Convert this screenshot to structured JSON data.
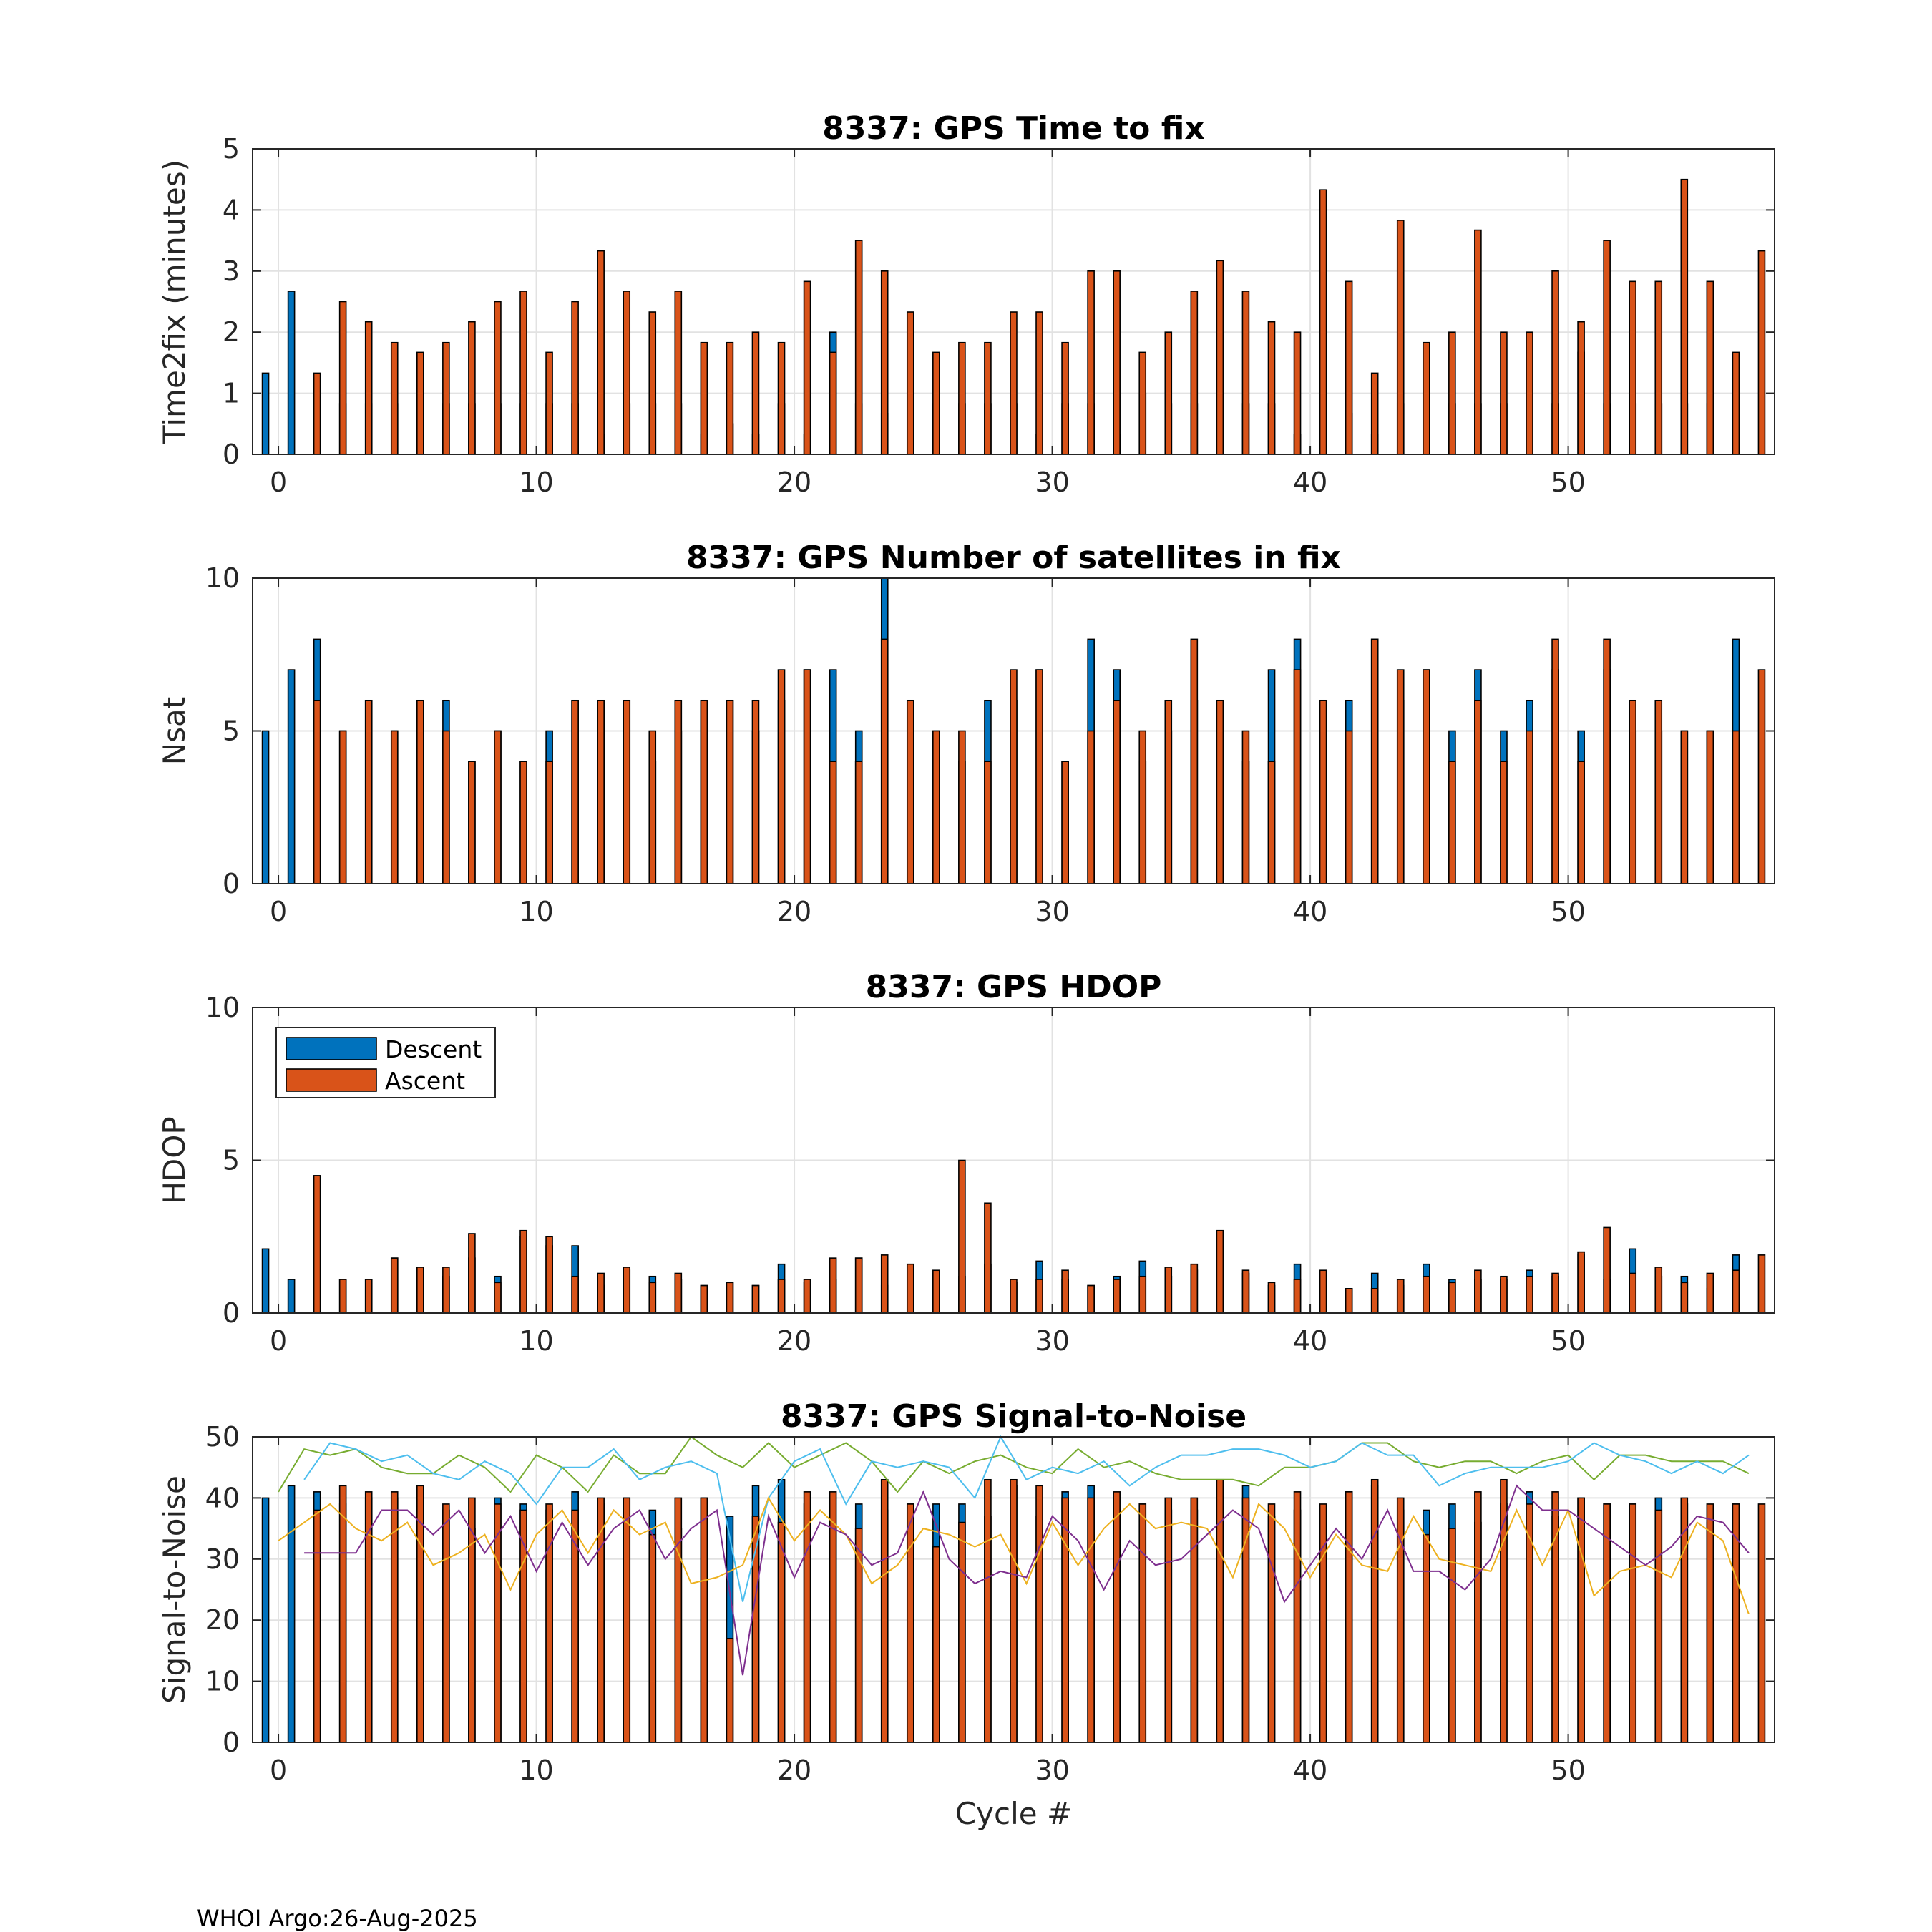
{
  "footer": "WHOI Argo:26-Aug-2025",
  "colors": {
    "descent": "#0072BD",
    "ascent": "#D95319",
    "snr_lines": [
      "#77AC30",
      "#4DBEEE",
      "#EDB120",
      "#7E2F8E"
    ]
  },
  "legend": {
    "descent": "Descent",
    "ascent": "Ascent"
  },
  "chart_data": [
    {
      "type": "bar",
      "title": "8337: GPS Time to fix",
      "ylabel": "Time2fix (minutes)",
      "xlabel": "",
      "xlim": [
        -1,
        58
      ],
      "ylim": [
        0,
        5
      ],
      "xticks": [
        0,
        10,
        20,
        30,
        40,
        50
      ],
      "yticks": [
        0,
        1,
        2,
        3,
        4,
        5
      ],
      "grid": true,
      "cycles": [
        0,
        1,
        2,
        3,
        4,
        5,
        6,
        7,
        8,
        9,
        10,
        11,
        12,
        13,
        14,
        15,
        16,
        17,
        18,
        19,
        20,
        21,
        22,
        23,
        24,
        25,
        26,
        27,
        28,
        29,
        30,
        31,
        32,
        33,
        34,
        35,
        36,
        37,
        38,
        39,
        40,
        41,
        42,
        43,
        44,
        45,
        46,
        47,
        48,
        49,
        50,
        51,
        52,
        53,
        54,
        55,
        56,
        57
      ],
      "series": [
        {
          "name": "Descent",
          "values": [
            1.33,
            2.67,
            0.83,
            0.83,
            0.83,
            0.83,
            0.83,
            0.83,
            0.83,
            0.83,
            0.83,
            0.83,
            0.83,
            0.33,
            0.83,
            0.83,
            0.83,
            0.33,
            0.5,
            0.33,
            0.83,
            0.33,
            2.0,
            0.83,
            0.67,
            0.83,
            0.83,
            0.83,
            0.83,
            0.83,
            0.33,
            0.83,
            0.83,
            0.33,
            1.0,
            0.83,
            0.83,
            0.83,
            0.83,
            0.83,
            0.33,
            0.83,
            0.67,
            0.33,
            0.83,
            0.5,
            0.83,
            0.83,
            0.83,
            0.83,
            0.83,
            1.67,
            0.83,
            0.83,
            0.83,
            0.83,
            0.83,
            0.83
          ]
        },
        {
          "name": "Ascent",
          "values": [
            null,
            1.33,
            2.5,
            2.17,
            1.83,
            1.67,
            1.83,
            2.17,
            2.5,
            2.67,
            1.67,
            2.5,
            3.33,
            2.67,
            2.33,
            2.67,
            1.83,
            1.83,
            2.0,
            1.83,
            2.83,
            1.67,
            3.5,
            3.0,
            2.33,
            1.67,
            1.83,
            1.83,
            2.33,
            2.33,
            1.83,
            3.0,
            3.0,
            1.67,
            2.0,
            2.67,
            3.17,
            2.67,
            2.17,
            2.0,
            4.33,
            2.83,
            1.33,
            3.83,
            1.83,
            2.0,
            3.67,
            2.0,
            2.0,
            3.0,
            2.17,
            3.5,
            2.83,
            2.83,
            4.5,
            2.83,
            1.67,
            3.33
          ]
        }
      ]
    },
    {
      "type": "bar",
      "title": "8337: GPS Number of satellites in fix",
      "ylabel": "Nsat",
      "xlabel": "",
      "xlim": [
        -1,
        58
      ],
      "ylim": [
        0,
        10
      ],
      "xticks": [
        0,
        10,
        20,
        30,
        40,
        50
      ],
      "yticks": [
        0,
        5,
        10
      ],
      "grid": true,
      "cycles": [
        0,
        1,
        2,
        3,
        4,
        5,
        6,
        7,
        8,
        9,
        10,
        11,
        12,
        13,
        14,
        15,
        16,
        17,
        18,
        19,
        20,
        21,
        22,
        23,
        24,
        25,
        26,
        27,
        28,
        29,
        30,
        31,
        32,
        33,
        34,
        35,
        36,
        37,
        38,
        39,
        40,
        41,
        42,
        43,
        44,
        45,
        46,
        47,
        48,
        49,
        50,
        51,
        52,
        53,
        54,
        55,
        56,
        57
      ],
      "series": [
        {
          "name": "Descent",
          "values": [
            5,
            7,
            8,
            5,
            6,
            5,
            6,
            6,
            4,
            5,
            4,
            5,
            6,
            6,
            6,
            4,
            5,
            6,
            6,
            5,
            6,
            7,
            7,
            5,
            10,
            6,
            5,
            4,
            6,
            6,
            7,
            4,
            8,
            7,
            4,
            5,
            6,
            6,
            4,
            7,
            8,
            5,
            6,
            8,
            6,
            7,
            5,
            7,
            5,
            6,
            7,
            5,
            7,
            5,
            5,
            5,
            5,
            8
          ]
        },
        {
          "name": "Ascent",
          "values": [
            null,
            6,
            5,
            6,
            5,
            6,
            5,
            4,
            5,
            4,
            4,
            6,
            6,
            6,
            5,
            6,
            6,
            6,
            6,
            7,
            7,
            4,
            4,
            8,
            6,
            5,
            5,
            4,
            7,
            7,
            4,
            5,
            6,
            5,
            6,
            8,
            6,
            5,
            4,
            7,
            6,
            5,
            8,
            7,
            7,
            4,
            6,
            4,
            5,
            8,
            4,
            8,
            6,
            6,
            5,
            5,
            5,
            7
          ]
        }
      ]
    },
    {
      "type": "bar",
      "title": "8337: GPS HDOP",
      "ylabel": "HDOP",
      "xlabel": "",
      "xlim": [
        -1,
        58
      ],
      "ylim": [
        0,
        10
      ],
      "xticks": [
        0,
        10,
        20,
        30,
        40,
        50
      ],
      "yticks": [
        0,
        5,
        10
      ],
      "grid": true,
      "legend": "top-left",
      "cycles": [
        0,
        1,
        2,
        3,
        4,
        5,
        6,
        7,
        8,
        9,
        10,
        11,
        12,
        13,
        14,
        15,
        16,
        17,
        18,
        19,
        20,
        21,
        22,
        23,
        24,
        25,
        26,
        27,
        28,
        29,
        30,
        31,
        32,
        33,
        34,
        35,
        36,
        37,
        38,
        39,
        40,
        41,
        42,
        43,
        44,
        45,
        46,
        47,
        48,
        49,
        50,
        51,
        52,
        53,
        54,
        55,
        56,
        57
      ],
      "series": [
        {
          "name": "Descent",
          "values": [
            2.1,
            1.1,
            1.1,
            1.1,
            1.1,
            1.8,
            1.2,
            1.2,
            1.8,
            1.2,
            2.5,
            2.2,
            2.2,
            0.9,
            1.4,
            1.2,
            1.1,
            0.9,
            1.0,
            0.9,
            1.6,
            1.0,
            1.1,
            1.8,
            0.9,
            1.5,
            1.3,
            1.2,
            1.6,
            1.0,
            1.7,
            1.1,
            0.9,
            1.2,
            1.7,
            1.2,
            1.4,
            1.8,
            1.3,
            0.9,
            1.6,
            1.0,
            0.8,
            1.3,
            0.9,
            1.6,
            1.1,
            1.1,
            1.1,
            1.4,
            1.2,
            1.9,
            1.1,
            2.1,
            1.2,
            1.2,
            0.8,
            1.9
          ]
        },
        {
          "name": "Ascent",
          "values": [
            null,
            4.5,
            1.1,
            1.1,
            1.8,
            1.5,
            1.5,
            2.6,
            1.0,
            2.7,
            2.5,
            1.2,
            1.3,
            1.5,
            1.0,
            1.3,
            0.9,
            1.0,
            0.9,
            1.1,
            1.1,
            1.8,
            1.8,
            1.9,
            1.6,
            1.4,
            5.0,
            3.6,
            1.1,
            1.1,
            1.4,
            0.9,
            1.1,
            1.2,
            1.5,
            1.6,
            2.7,
            1.4,
            1.0,
            1.1,
            1.4,
            0.8,
            0.8,
            1.1,
            1.2,
            1.0,
            1.4,
            1.2,
            1.2,
            1.3,
            2.0,
            2.8,
            1.3,
            1.5,
            1.0,
            1.3,
            1.4,
            1.9
          ]
        }
      ]
    },
    {
      "type": "bar",
      "title": "8337: GPS Signal-to-Noise",
      "ylabel": "Signal-to-Noise",
      "xlabel": "Cycle #",
      "xlim": [
        -1,
        58
      ],
      "ylim": [
        0,
        50
      ],
      "xticks": [
        0,
        10,
        20,
        30,
        40,
        50
      ],
      "yticks": [
        0,
        10,
        20,
        30,
        40,
        50
      ],
      "grid": true,
      "cycles": [
        0,
        1,
        2,
        3,
        4,
        5,
        6,
        7,
        8,
        9,
        10,
        11,
        12,
        13,
        14,
        15,
        16,
        17,
        18,
        19,
        20,
        21,
        22,
        23,
        24,
        25,
        26,
        27,
        28,
        29,
        30,
        31,
        32,
        33,
        34,
        35,
        36,
        37,
        38,
        39,
        40,
        41,
        42,
        43,
        44,
        45,
        46,
        47,
        48,
        49,
        50,
        51,
        52,
        53,
        54,
        55,
        56,
        57
      ],
      "series": [
        {
          "name": "Descent",
          "values": [
            40,
            42,
            41,
            39,
            40,
            40,
            40,
            38,
            35,
            40,
            39,
            38,
            41,
            39,
            40,
            38,
            35,
            40,
            37,
            42,
            43,
            39,
            35,
            39,
            38,
            39,
            39,
            39,
            37,
            42,
            37,
            41,
            42,
            38,
            39,
            38,
            38,
            38,
            42,
            37,
            38,
            38,
            41,
            42,
            38,
            38,
            39,
            36,
            39,
            41,
            37,
            40,
            39,
            39,
            40,
            39,
            36,
            39
          ]
        },
        {
          "name": "Ascent",
          "values": [
            null,
            38,
            42,
            41,
            41,
            42,
            39,
            40,
            39,
            38,
            39,
            38,
            40,
            40,
            34,
            40,
            40,
            17,
            37,
            36,
            41,
            41,
            35,
            43,
            39,
            32,
            36,
            43,
            43,
            42,
            40,
            40,
            41,
            39,
            40,
            40,
            43,
            40,
            39,
            41,
            39,
            41,
            43,
            40,
            34,
            35,
            41,
            43,
            39,
            41,
            40,
            39,
            39,
            38,
            40,
            39,
            39,
            39
          ]
        },
        {
          "name": "SNR line green",
          "values": [
            41,
            48,
            47,
            48,
            45,
            44,
            44,
            47,
            45,
            41,
            47,
            45,
            41,
            47,
            44,
            44,
            50,
            47,
            45,
            49,
            45,
            47,
            49,
            46,
            41,
            46,
            44,
            46,
            47,
            45,
            44,
            48,
            45,
            46,
            44,
            43,
            43,
            43,
            42,
            45,
            45,
            46,
            49,
            49,
            46,
            45,
            46,
            46,
            44,
            46,
            47,
            43,
            47,
            47,
            46,
            46,
            46,
            44
          ]
        },
        {
          "name": "SNR line light blue",
          "values": [
            null,
            43,
            49,
            48,
            46,
            47,
            44,
            43,
            46,
            44,
            39,
            45,
            45,
            48,
            43,
            45,
            46,
            44,
            23,
            40,
            46,
            48,
            39,
            46,
            45,
            46,
            45,
            40,
            50,
            43,
            45,
            44,
            46,
            42,
            45,
            47,
            47,
            48,
            48,
            47,
            45,
            46,
            49,
            47,
            47,
            42,
            44,
            45,
            45,
            45,
            46,
            49,
            47,
            46,
            44,
            46,
            44,
            47
          ]
        },
        {
          "name": "SNR line yellow",
          "values": [
            33,
            36,
            39,
            35,
            33,
            36,
            29,
            31,
            34,
            25,
            34,
            38,
            31,
            38,
            34,
            36,
            26,
            27,
            29,
            40,
            33,
            38,
            34,
            26,
            29,
            35,
            34,
            32,
            34,
            26,
            36,
            29,
            35,
            39,
            35,
            36,
            35,
            27,
            39,
            35,
            27,
            34,
            29,
            28,
            37,
            30,
            29,
            28,
            38,
            29,
            38,
            24,
            28,
            29,
            27,
            36,
            33,
            21
          ]
        },
        {
          "name": "SNR line purple",
          "values": [
            null,
            31,
            31,
            31,
            38,
            38,
            34,
            38,
            31,
            37,
            28,
            36,
            29,
            35,
            38,
            30,
            35,
            38,
            11,
            37,
            27,
            36,
            34,
            29,
            31,
            41,
            30,
            26,
            28,
            27,
            37,
            33,
            25,
            33,
            29,
            30,
            34,
            38,
            35,
            23,
            29,
            35,
            30,
            38,
            28,
            28,
            25,
            30,
            42,
            38,
            38,
            35,
            32,
            29,
            32,
            37,
            36,
            31
          ]
        }
      ]
    }
  ]
}
